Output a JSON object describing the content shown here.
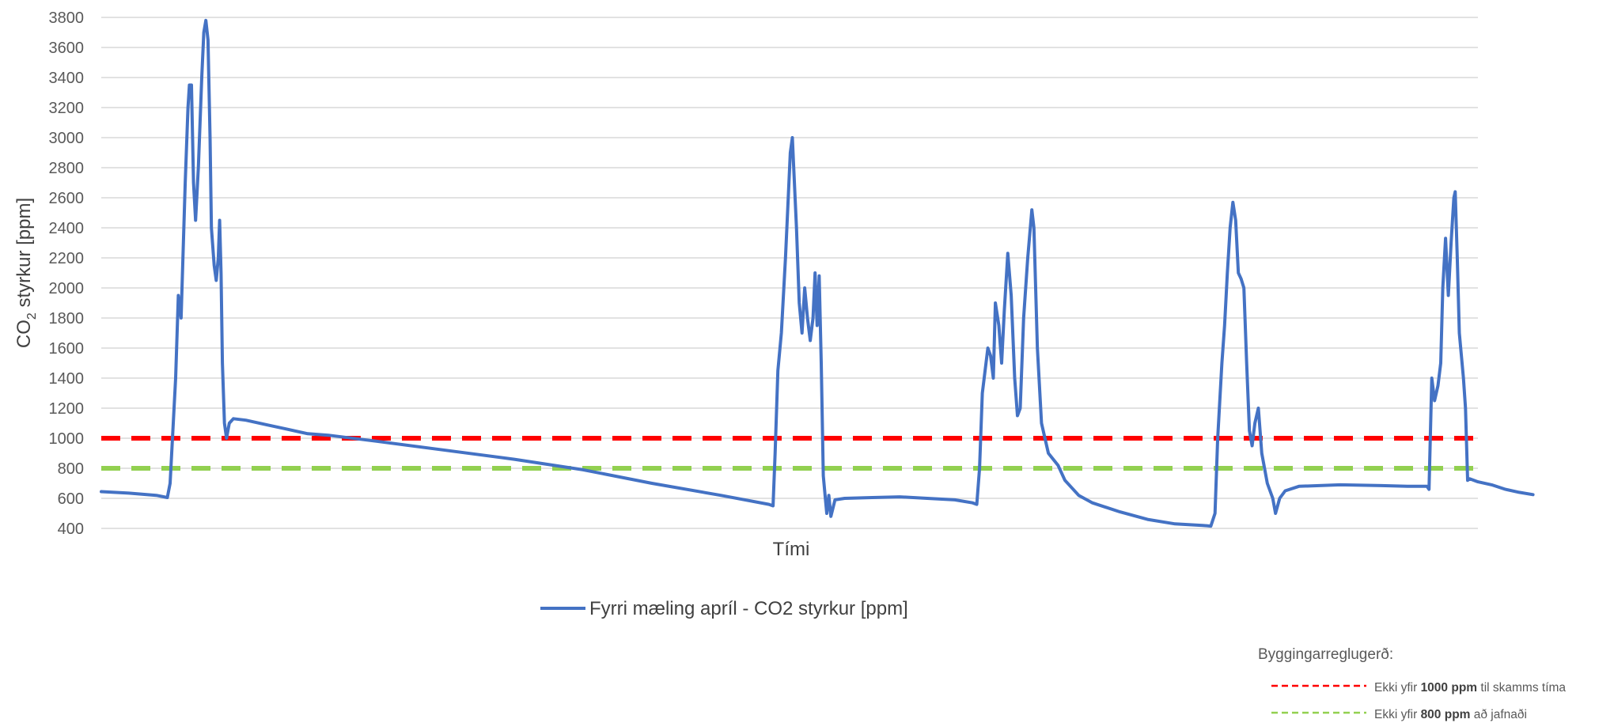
{
  "chart_data": {
    "type": "line",
    "title": "",
    "xlabel": "Tími",
    "ylabel": {
      "prefix": "CO",
      "subscript": "2",
      "suffix": " styrkur [ppm]"
    },
    "ylim": [
      400,
      3800
    ],
    "yticks": [
      400,
      600,
      800,
      1000,
      1200,
      1400,
      1600,
      1800,
      2000,
      2200,
      2400,
      2600,
      2800,
      3000,
      3200,
      3400,
      3600,
      3800
    ],
    "xlim": [
      0,
      100
    ],
    "grid": true,
    "legend_position": "bottom",
    "series": [
      {
        "name": "Fyrri mæling apríl - CO2 styrkur [ppm]",
        "color": "#4472C4",
        "points": [
          [
            0,
            645
          ],
          [
            2,
            635
          ],
          [
            4,
            620
          ],
          [
            4.8,
            605
          ],
          [
            5.0,
            700
          ],
          [
            5.4,
            1400
          ],
          [
            5.6,
            1950
          ],
          [
            5.8,
            1800
          ],
          [
            6.1,
            2700
          ],
          [
            6.3,
            3200
          ],
          [
            6.4,
            3350
          ],
          [
            6.55,
            3350
          ],
          [
            6.7,
            2700
          ],
          [
            6.85,
            2450
          ],
          [
            7.05,
            2800
          ],
          [
            7.3,
            3400
          ],
          [
            7.45,
            3700
          ],
          [
            7.6,
            3780
          ],
          [
            7.75,
            3650
          ],
          [
            7.9,
            3000
          ],
          [
            8.0,
            2400
          ],
          [
            8.2,
            2150
          ],
          [
            8.35,
            2050
          ],
          [
            8.5,
            2200
          ],
          [
            8.6,
            2450
          ],
          [
            8.7,
            2100
          ],
          [
            8.8,
            1500
          ],
          [
            8.95,
            1100
          ],
          [
            9.1,
            1000
          ],
          [
            9.3,
            1100
          ],
          [
            9.6,
            1130
          ],
          [
            10.5,
            1120
          ],
          [
            12,
            1090
          ],
          [
            13.5,
            1060
          ],
          [
            15,
            1030
          ],
          [
            16.5,
            1020
          ],
          [
            20,
            980
          ],
          [
            25,
            920
          ],
          [
            30,
            860
          ],
          [
            35,
            790
          ],
          [
            40,
            700
          ],
          [
            45,
            620
          ],
          [
            48.5,
            560
          ],
          [
            48.8,
            550
          ],
          [
            48.95,
            900
          ],
          [
            49.15,
            1450
          ],
          [
            49.4,
            1700
          ],
          [
            49.7,
            2200
          ],
          [
            49.9,
            2600
          ],
          [
            50.05,
            2900
          ],
          [
            50.2,
            3000
          ],
          [
            50.3,
            2800
          ],
          [
            50.5,
            2400
          ],
          [
            50.7,
            1900
          ],
          [
            50.9,
            1700
          ],
          [
            51.1,
            2000
          ],
          [
            51.3,
            1800
          ],
          [
            51.5,
            1650
          ],
          [
            51.7,
            1800
          ],
          [
            51.85,
            2100
          ],
          [
            52.0,
            1750
          ],
          [
            52.15,
            2080
          ],
          [
            52.3,
            1500
          ],
          [
            52.45,
            750
          ],
          [
            52.6,
            600
          ],
          [
            52.7,
            500
          ],
          [
            52.85,
            620
          ],
          [
            53.0,
            480
          ],
          [
            53.3,
            590
          ],
          [
            54,
            600
          ],
          [
            56,
            605
          ],
          [
            58,
            610
          ],
          [
            60,
            600
          ],
          [
            62,
            590
          ],
          [
            63.3,
            570
          ],
          [
            63.6,
            560
          ],
          [
            63.8,
            800
          ],
          [
            64.0,
            1300
          ],
          [
            64.2,
            1450
          ],
          [
            64.4,
            1600
          ],
          [
            64.6,
            1550
          ],
          [
            64.8,
            1400
          ],
          [
            64.95,
            1900
          ],
          [
            65.2,
            1750
          ],
          [
            65.4,
            1500
          ],
          [
            65.6,
            1850
          ],
          [
            65.85,
            2230
          ],
          [
            66.1,
            1950
          ],
          [
            66.35,
            1400
          ],
          [
            66.55,
            1150
          ],
          [
            66.75,
            1200
          ],
          [
            67.0,
            1800
          ],
          [
            67.3,
            2200
          ],
          [
            67.6,
            2520
          ],
          [
            67.75,
            2400
          ],
          [
            68.0,
            1600
          ],
          [
            68.3,
            1100
          ],
          [
            68.8,
            900
          ],
          [
            69.5,
            820
          ],
          [
            70,
            720
          ],
          [
            71,
            620
          ],
          [
            72,
            570
          ],
          [
            74,
            510
          ],
          [
            76,
            460
          ],
          [
            78,
            430
          ],
          [
            80,
            420
          ],
          [
            80.6,
            415
          ],
          [
            80.9,
            500
          ],
          [
            81.1,
            1000
          ],
          [
            81.4,
            1500
          ],
          [
            81.6,
            1750
          ],
          [
            81.8,
            2100
          ],
          [
            82.0,
            2400
          ],
          [
            82.2,
            2570
          ],
          [
            82.4,
            2450
          ],
          [
            82.6,
            2100
          ],
          [
            82.8,
            2060
          ],
          [
            83.0,
            2000
          ],
          [
            83.2,
            1500
          ],
          [
            83.4,
            1050
          ],
          [
            83.6,
            950
          ],
          [
            83.8,
            1100
          ],
          [
            84.05,
            1200
          ],
          [
            84.3,
            900
          ],
          [
            84.7,
            700
          ],
          [
            85.1,
            600
          ],
          [
            85.3,
            500
          ],
          [
            85.6,
            600
          ],
          [
            86.0,
            650
          ],
          [
            87,
            680
          ],
          [
            90,
            690
          ],
          [
            93,
            685
          ],
          [
            95,
            680
          ],
          [
            96.3,
            680
          ],
          [
            96.45,
            660
          ],
          [
            96.65,
            1400
          ],
          [
            96.85,
            1250
          ],
          [
            97.1,
            1350
          ],
          [
            97.3,
            1500
          ],
          [
            97.45,
            2000
          ],
          [
            97.65,
            2330
          ],
          [
            97.85,
            1950
          ],
          [
            98.05,
            2300
          ],
          [
            98.25,
            2600
          ],
          [
            98.35,
            2640
          ],
          [
            98.5,
            2200
          ],
          [
            98.65,
            1700
          ],
          [
            98.8,
            1550
          ],
          [
            98.95,
            1400
          ],
          [
            99.1,
            1200
          ],
          [
            99.25,
            720
          ],
          [
            99.4,
            730
          ],
          [
            100,
            710
          ],
          [
            101,
            690
          ],
          [
            102,
            660
          ],
          [
            103,
            640
          ],
          [
            104,
            625
          ]
        ]
      }
    ],
    "reference_lines": [
      {
        "y": 1000,
        "color": "#FF0000",
        "style": "dashed"
      },
      {
        "y": 800,
        "color": "#92D050",
        "style": "dashed"
      }
    ]
  },
  "regulation_box": {
    "title": "Byggingarreglugerð:",
    "items": [
      {
        "pre": "Ekki yfir ",
        "bold": "1000 ppm",
        "post": " til skamms tíma",
        "color": "#FF0000"
      },
      {
        "pre": "Ekki yfir ",
        "bold": "800 ppm",
        "post": " að jafnaði",
        "color": "#92D050"
      }
    ]
  }
}
